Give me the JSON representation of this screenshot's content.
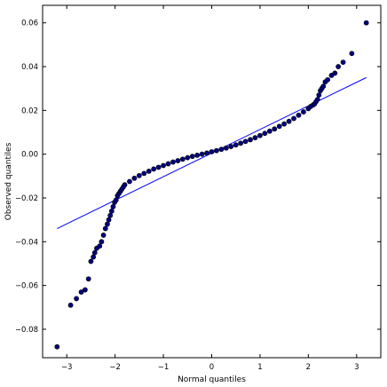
{
  "chart_data": {
    "type": "scatter",
    "title": "",
    "xlabel": "Normal quantiles",
    "ylabel": "Observed quantiles",
    "xlim": [
      -3.5,
      3.5
    ],
    "ylim": [
      -0.093,
      0.068
    ],
    "xticks": [
      -3,
      -2,
      -1,
      0,
      1,
      2,
      3
    ],
    "xtick_labels": [
      "−3",
      "−2",
      "−1",
      "0",
      "1",
      "2",
      "3"
    ],
    "yticks": [
      -0.08,
      -0.06,
      -0.04,
      -0.02,
      0.0,
      0.02,
      0.04,
      0.06
    ],
    "ytick_labels": [
      "−0.08",
      "−0.06",
      "−0.04",
      "−0.02",
      "0.00",
      "0.02",
      "0.04",
      "0.06"
    ],
    "grid": false,
    "legend": "none",
    "marker_color": "#00007f",
    "line_color": "#0000ff",
    "reference_line": {
      "x": [
        -3.2,
        3.2
      ],
      "y": [
        -0.034,
        0.035
      ]
    },
    "points": {
      "x": [
        -3.2,
        -2.92,
        -2.8,
        -2.7,
        -2.62,
        -2.55,
        -2.5,
        -2.45,
        -2.42,
        -2.38,
        -2.32,
        -2.28,
        -2.24,
        -2.2,
        -2.16,
        -2.13,
        -2.1,
        -2.07,
        -2.04,
        -2.01,
        -1.98,
        -1.95,
        -1.92,
        -1.89,
        -1.86,
        -1.83,
        -1.8,
        -1.7,
        -1.6,
        -1.5,
        -1.4,
        -1.3,
        -1.2,
        -1.1,
        -1.0,
        -0.9,
        -0.8,
        -0.7,
        -0.6,
        -0.5,
        -0.4,
        -0.3,
        -0.2,
        -0.1,
        0.0,
        0.1,
        0.2,
        0.3,
        0.4,
        0.5,
        0.6,
        0.7,
        0.8,
        0.9,
        1.0,
        1.1,
        1.2,
        1.3,
        1.4,
        1.5,
        1.6,
        1.7,
        1.8,
        1.9,
        2.0,
        2.05,
        2.1,
        2.13,
        2.16,
        2.19,
        2.22,
        2.25,
        2.28,
        2.31,
        2.35,
        2.4,
        2.48,
        2.55,
        2.62,
        2.72,
        2.9,
        3.2
      ],
      "y": [
        -0.088,
        -0.069,
        -0.066,
        -0.063,
        -0.062,
        -0.057,
        -0.049,
        -0.047,
        -0.045,
        -0.043,
        -0.042,
        -0.04,
        -0.037,
        -0.034,
        -0.032,
        -0.03,
        -0.028,
        -0.026,
        -0.024,
        -0.022,
        -0.021,
        -0.019,
        -0.018,
        -0.017,
        -0.016,
        -0.015,
        -0.014,
        -0.0125,
        -0.011,
        -0.0098,
        -0.0088,
        -0.0078,
        -0.0068,
        -0.006,
        -0.0052,
        -0.0044,
        -0.0036,
        -0.003,
        -0.0023,
        -0.0016,
        -0.001,
        -0.0005,
        0.0,
        0.0005,
        0.0011,
        0.0016,
        0.0022,
        0.0028,
        0.0035,
        0.0042,
        0.005,
        0.0058,
        0.0066,
        0.0075,
        0.0085,
        0.0095,
        0.0105,
        0.0115,
        0.0127,
        0.0138,
        0.015,
        0.0163,
        0.0178,
        0.0193,
        0.0208,
        0.0218,
        0.0225,
        0.023,
        0.024,
        0.025,
        0.027,
        0.029,
        0.03,
        0.031,
        0.033,
        0.034,
        0.036,
        0.037,
        0.04,
        0.042,
        0.046,
        0.06
      ]
    }
  }
}
